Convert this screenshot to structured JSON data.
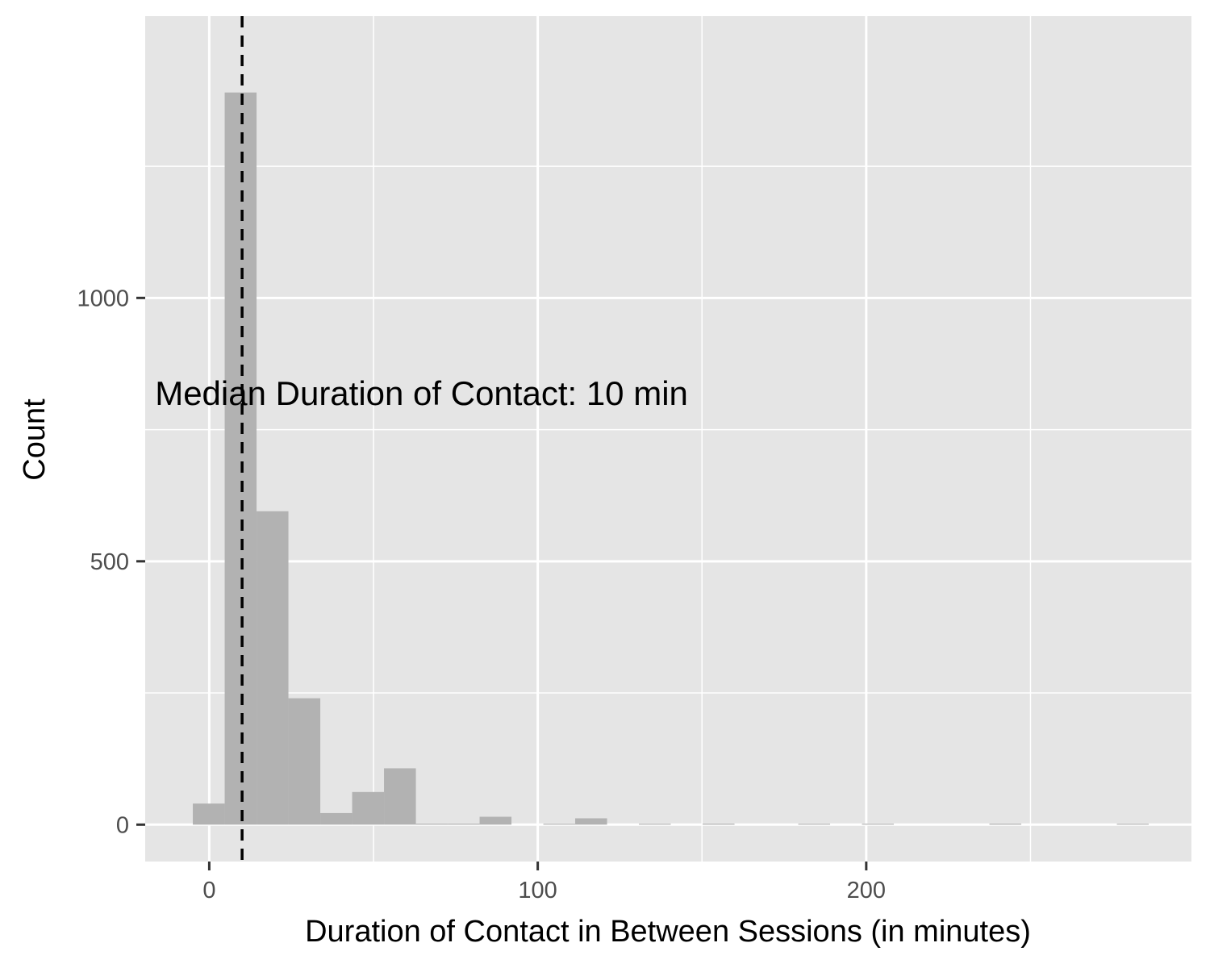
{
  "chart_data": {
    "type": "histogram",
    "title": "",
    "xlabel": "Duration of Contact in Between Sessions (in minutes)",
    "ylabel": "Count",
    "xlim": [
      -19.5,
      299
    ],
    "ylim": [
      -70,
      1535
    ],
    "x_ticks": [
      {
        "value": 0,
        "label": "0"
      },
      {
        "value": 100,
        "label": "100"
      },
      {
        "value": 200,
        "label": "200"
      }
    ],
    "y_ticks": [
      {
        "value": 0,
        "label": "0"
      },
      {
        "value": 500,
        "label": "500"
      },
      {
        "value": 1000,
        "label": "1000"
      }
    ],
    "x_minor_gridlines": [
      50,
      150,
      250
    ],
    "y_minor_gridlines": [
      250,
      750,
      1250
    ],
    "grid": true,
    "background": "#e5e5e5",
    "bar_color": "#b2b2b2",
    "bin_width": 9.7,
    "bins": [
      {
        "start": -5.0,
        "end": 4.7,
        "count": 40
      },
      {
        "start": 4.7,
        "end": 14.4,
        "count": 1390
      },
      {
        "start": 14.4,
        "end": 24.1,
        "count": 595
      },
      {
        "start": 24.1,
        "end": 33.8,
        "count": 240
      },
      {
        "start": 33.8,
        "end": 43.5,
        "count": 22
      },
      {
        "start": 43.5,
        "end": 53.2,
        "count": 62
      },
      {
        "start": 53.2,
        "end": 62.9,
        "count": 107
      },
      {
        "start": 62.9,
        "end": 72.6,
        "count": 2
      },
      {
        "start": 72.6,
        "end": 82.3,
        "count": 2
      },
      {
        "start": 82.3,
        "end": 92.0,
        "count": 15
      },
      {
        "start": 101.7,
        "end": 111.4,
        "count": 1
      },
      {
        "start": 111.4,
        "end": 121.1,
        "count": 12
      },
      {
        "start": 130.8,
        "end": 140.5,
        "count": 1
      },
      {
        "start": 150.2,
        "end": 159.9,
        "count": 2
      },
      {
        "start": 179.3,
        "end": 189.0,
        "count": 1
      },
      {
        "start": 198.7,
        "end": 208.4,
        "count": 1
      },
      {
        "start": 237.5,
        "end": 247.2,
        "count": 2
      },
      {
        "start": 276.3,
        "end": 286.0,
        "count": 1
      }
    ],
    "median_line": {
      "value": 10,
      "style": "dashed",
      "color": "#000000"
    },
    "annotations": [
      {
        "text": "Median Duration of Contact: 10 min",
        "x": -16.5,
        "y": 820
      }
    ]
  }
}
